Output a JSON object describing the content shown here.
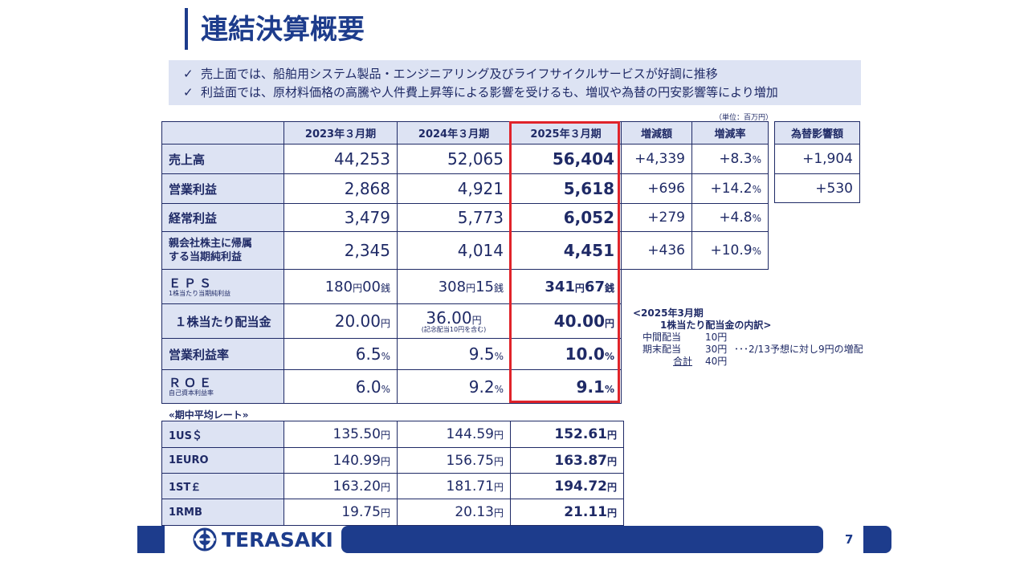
{
  "title": "連結決算概要",
  "summary": [
    "売上面では、船舶用システム製品・エンジニアリング及びライフサイクルサービスが好調に推移",
    "利益面では、原材料価格の高騰や人件費上昇等による影響を受けるも、増収や為替の円安影響等により増加"
  ],
  "check_mark": "✓",
  "unit": "（単位：百万円）",
  "headers": {
    "y2023": "2023年３月期",
    "y2024": "2024年３月期",
    "y2025": "2025年３月期",
    "change": "増減額",
    "rate": "増減率",
    "fx": "為替影響額"
  },
  "rows": {
    "sales": {
      "label": "売上高",
      "v2023": "44,253",
      "v2024": "52,065",
      "v2025": "56,404",
      "change": "+4,339",
      "rate": "+8.3",
      "fx": "+1,904"
    },
    "op": {
      "label": "営業利益",
      "v2023": "2,868",
      "v2024": "4,921",
      "v2025": "5,618",
      "change": "+696",
      "rate": "+14.2",
      "fx": "+530"
    },
    "ord": {
      "label": "経常利益",
      "v2023": "3,479",
      "v2024": "5,773",
      "v2025": "6,052",
      "change": "+279",
      "rate": "+4.8"
    },
    "net": {
      "label_line1": "親会社株主に帰属",
      "label_line2": "する当期純利益",
      "v2023": "2,345",
      "v2024": "4,014",
      "v2025": "4,451",
      "change": "+436",
      "rate": "+10.9"
    },
    "eps": {
      "label": "ＥＰＳ",
      "sublabel": "1株当たり当期純利益",
      "v2023_yen": "180",
      "v2023_sen": "00",
      "v2024_yen": "308",
      "v2024_sen": "15",
      "v2025_yen": "341",
      "v2025_sen": "67"
    },
    "div": {
      "label": "１株当たり配当金",
      "v2023": "20.00",
      "v2024": "36.00",
      "v2024_note": "(記念配当10円を含む)",
      "v2025": "40.00"
    },
    "opm": {
      "label": "営業利益率",
      "v2023": "6.5",
      "v2024": "9.5",
      "v2025": "10.0"
    },
    "roe": {
      "label": "ＲＯＥ",
      "sublabel": "自己資本利益率",
      "v2023": "6.0",
      "v2024": "9.2",
      "v2025": "9.1"
    }
  },
  "units": {
    "pct": "%",
    "yen": "円",
    "sen": "銭"
  },
  "breakdown": {
    "title1": "<2025年3月期",
    "title2": "1株当たり配当金の内訳>",
    "interim_label": "中間配当",
    "interim_value": "10円",
    "final_label": "期末配当",
    "final_value": "30円",
    "final_note": "･･･2/13予想に対し9円の増配",
    "total_label": "合計",
    "total_value": "40円"
  },
  "rates": {
    "title": "«期中平均レート»",
    "items": [
      {
        "label": "1US＄",
        "v2023": "135.50",
        "v2024": "144.59",
        "v2025": "152.61"
      },
      {
        "label": "1EURO",
        "v2023": "140.99",
        "v2024": "156.75",
        "v2025": "163.87"
      },
      {
        "label": "1ST￡",
        "v2023": "163.20",
        "v2024": "181.71",
        "v2025": "194.72"
      },
      {
        "label": "1RMB",
        "v2023": "19.75",
        "v2024": "20.13",
        "v2025": "21.11"
      }
    ]
  },
  "logo_text": "TERASAKI",
  "page_number": "7",
  "colors": {
    "navy": "#1d3c8c",
    "text": "#1f2a66",
    "light_blue": "#dde3f3",
    "highlight_red": "#e0232a"
  }
}
